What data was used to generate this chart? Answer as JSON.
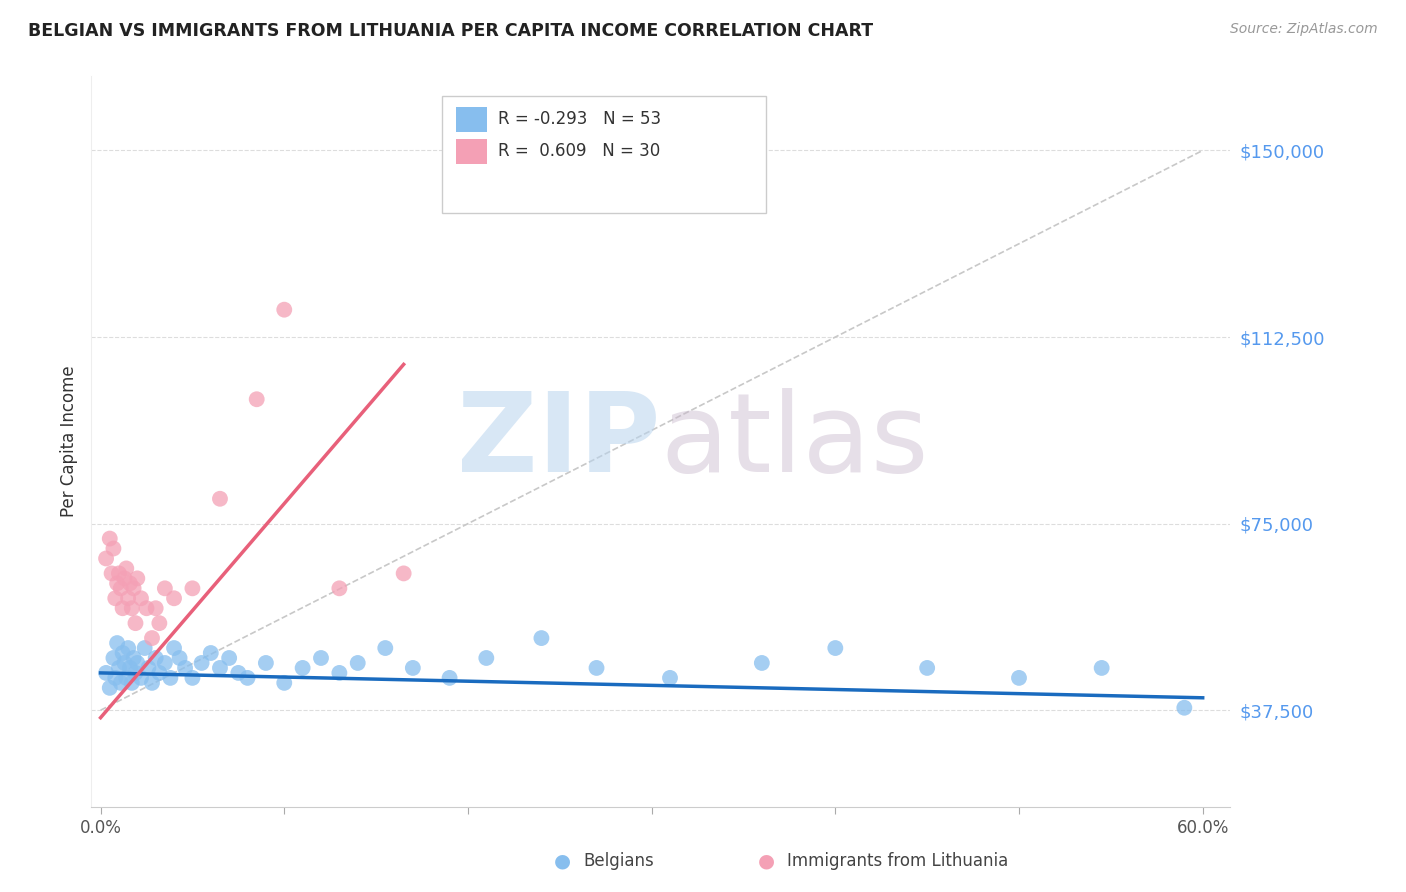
{
  "title": "BELGIAN VS IMMIGRANTS FROM LITHUANIA PER CAPITA INCOME CORRELATION CHART",
  "source": "Source: ZipAtlas.com",
  "ylabel": "Per Capita Income",
  "xlim": [
    -0.005,
    0.615
  ],
  "ylim": [
    18000,
    165000
  ],
  "yticks": [
    37500,
    75000,
    112500,
    150000
  ],
  "ytick_labels": [
    "$37,500",
    "$75,000",
    "$112,500",
    "$150,000"
  ],
  "xtick_positions": [
    0.0,
    0.1,
    0.2,
    0.3,
    0.4,
    0.5,
    0.6
  ],
  "xtick_labels": [
    "0.0%",
    "",
    "",
    "",
    "",
    "",
    "60.0%"
  ],
  "blue_color": "#87BEEE",
  "pink_color": "#F4A0B5",
  "blue_line_color": "#1A6BBF",
  "pink_line_color": "#E8607A",
  "axis_label_color": "#5599EE",
  "background_color": "#FFFFFF",
  "legend_R_blue": "-0.293",
  "legend_N_blue": "53",
  "legend_R_pink": "0.609",
  "legend_N_pink": "30",
  "blue_scatter_x": [
    0.003,
    0.005,
    0.007,
    0.008,
    0.009,
    0.01,
    0.011,
    0.012,
    0.013,
    0.014,
    0.015,
    0.016,
    0.017,
    0.018,
    0.019,
    0.02,
    0.022,
    0.024,
    0.026,
    0.028,
    0.03,
    0.032,
    0.035,
    0.038,
    0.04,
    0.043,
    0.046,
    0.05,
    0.055,
    0.06,
    0.065,
    0.07,
    0.075,
    0.08,
    0.09,
    0.1,
    0.11,
    0.12,
    0.13,
    0.14,
    0.155,
    0.17,
    0.19,
    0.21,
    0.24,
    0.27,
    0.31,
    0.36,
    0.4,
    0.45,
    0.5,
    0.545,
    0.59
  ],
  "blue_scatter_y": [
    45000,
    42000,
    48000,
    44000,
    51000,
    46000,
    43000,
    49000,
    47000,
    44000,
    50000,
    46000,
    43000,
    48000,
    45000,
    47000,
    44000,
    50000,
    46000,
    43000,
    48000,
    45000,
    47000,
    44000,
    50000,
    48000,
    46000,
    44000,
    47000,
    49000,
    46000,
    48000,
    45000,
    44000,
    47000,
    43000,
    46000,
    48000,
    45000,
    47000,
    50000,
    46000,
    44000,
    48000,
    52000,
    46000,
    44000,
    47000,
    50000,
    46000,
    44000,
    46000,
    38000
  ],
  "pink_scatter_x": [
    0.003,
    0.005,
    0.006,
    0.007,
    0.008,
    0.009,
    0.01,
    0.011,
    0.012,
    0.013,
    0.014,
    0.015,
    0.016,
    0.017,
    0.018,
    0.019,
    0.02,
    0.022,
    0.025,
    0.028,
    0.03,
    0.032,
    0.035,
    0.04,
    0.05,
    0.065,
    0.085,
    0.1,
    0.13,
    0.165
  ],
  "pink_scatter_y": [
    68000,
    72000,
    65000,
    70000,
    60000,
    63000,
    65000,
    62000,
    58000,
    64000,
    66000,
    60000,
    63000,
    58000,
    62000,
    55000,
    64000,
    60000,
    58000,
    52000,
    58000,
    55000,
    62000,
    60000,
    62000,
    80000,
    100000,
    118000,
    62000,
    65000
  ],
  "blue_trend_x": [
    0.0,
    0.6
  ],
  "blue_trend_y": [
    45000,
    40000
  ],
  "pink_trend_x": [
    0.0,
    0.165
  ],
  "pink_trend_y": [
    36000,
    107000
  ],
  "diag_line_x": [
    0.0,
    0.6
  ],
  "diag_line_y": [
    37500,
    150000
  ]
}
